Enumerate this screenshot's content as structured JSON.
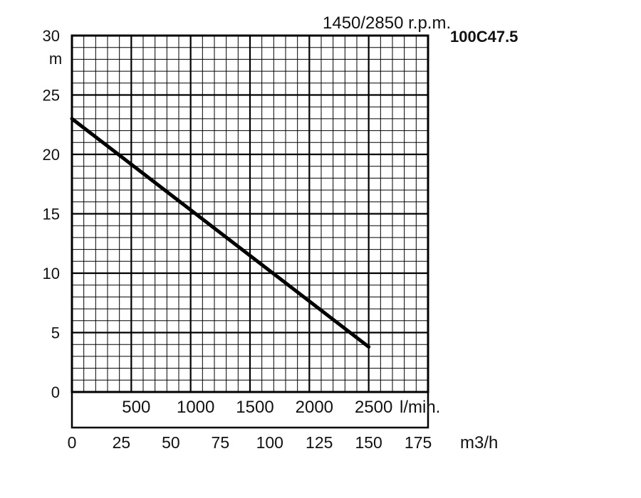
{
  "chart_data": {
    "type": "line",
    "title": "1450/2850 r.p.m.",
    "model": "100C47.5",
    "ylabel": "m",
    "ylim": [
      0,
      30
    ],
    "y_ticks": [
      "0",
      "5",
      "10",
      "15",
      "20",
      "25",
      "30"
    ],
    "xlim": [
      0,
      180
    ],
    "x_ticks_m3h": [
      "0",
      "25",
      "50",
      "75",
      "100",
      "125",
      "150",
      "175"
    ],
    "xlabel_m3h": "m3/h",
    "x_ticks_lmin": [
      "500",
      "1000",
      "1500",
      "2000",
      "2500"
    ],
    "xlabel_lmin": "l/min.",
    "grid": true,
    "series": [
      {
        "x": [
          0,
          150
        ],
        "y": [
          23,
          3.8
        ]
      }
    ]
  }
}
